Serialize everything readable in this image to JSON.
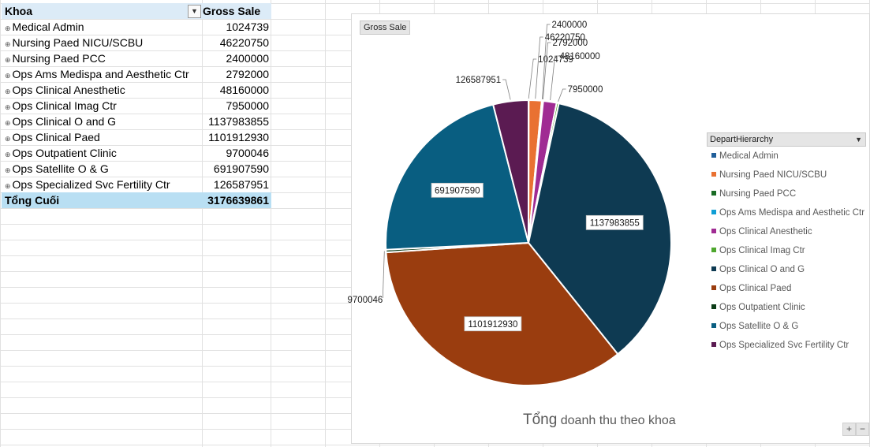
{
  "pivot": {
    "header_khoa": "Khoa",
    "header_gross": "Gross Sale",
    "rows": [
      {
        "name": "Medical Admin",
        "value": "1024739"
      },
      {
        "name": "Nursing Paed NICU/SCBU",
        "value": "46220750"
      },
      {
        "name": "Nursing Paed PCC",
        "value": "2400000"
      },
      {
        "name": "Ops Ams Medispa and Aesthetic Ctr",
        "value": "2792000"
      },
      {
        "name": "Ops Clinical Anesthetic",
        "value": "48160000"
      },
      {
        "name": "Ops Clinical Imag Ctr",
        "value": "7950000"
      },
      {
        "name": "Ops Clinical O and G",
        "value": "1137983855"
      },
      {
        "name": "Ops Clinical Paed",
        "value": "1101912930"
      },
      {
        "name": "Ops Outpatient Clinic",
        "value": "9700046"
      },
      {
        "name": "Ops Satellite O & G",
        "value": "691907590"
      },
      {
        "name": "Ops Specialized Svc Fertility Ctr",
        "value": "126587951"
      }
    ],
    "total_label": "Tổng Cuối",
    "total_value": "3176639861"
  },
  "chart": {
    "field_button": "Gross Sale",
    "legend_header": "DepartHierarchy",
    "title_first": "Tổng",
    "title_rest": " doanh thu theo khoa",
    "zoom_plus": "+",
    "zoom_minus": "−"
  },
  "chart_data": {
    "type": "pie",
    "title": "Tổng doanh thu theo khoa",
    "legend_title": "DepartHierarchy",
    "legend_position": "right",
    "categories": [
      "Medical Admin",
      "Nursing Paed NICU/SCBU",
      "Nursing Paed PCC",
      "Ops Ams Medispa and Aesthetic Ctr",
      "Ops Clinical Anesthetic",
      "Ops Clinical Imag Ctr",
      "Ops Clinical O and G",
      "Ops Clinical Paed",
      "Ops Outpatient Clinic",
      "Ops Satellite O & G",
      "Ops Specialized Svc Fertility Ctr"
    ],
    "values": [
      1024739,
      46220750,
      2400000,
      2792000,
      48160000,
      7950000,
      1137983855,
      1101912930,
      9700046,
      691907590,
      126587951
    ],
    "colors": [
      "#215f9a",
      "#e97132",
      "#196b24",
      "#0f9ed5",
      "#a02b93",
      "#4ea72e",
      "#0e3a52",
      "#9a3d0f",
      "#0c3c17",
      "#095e81",
      "#5b1b52"
    ]
  }
}
